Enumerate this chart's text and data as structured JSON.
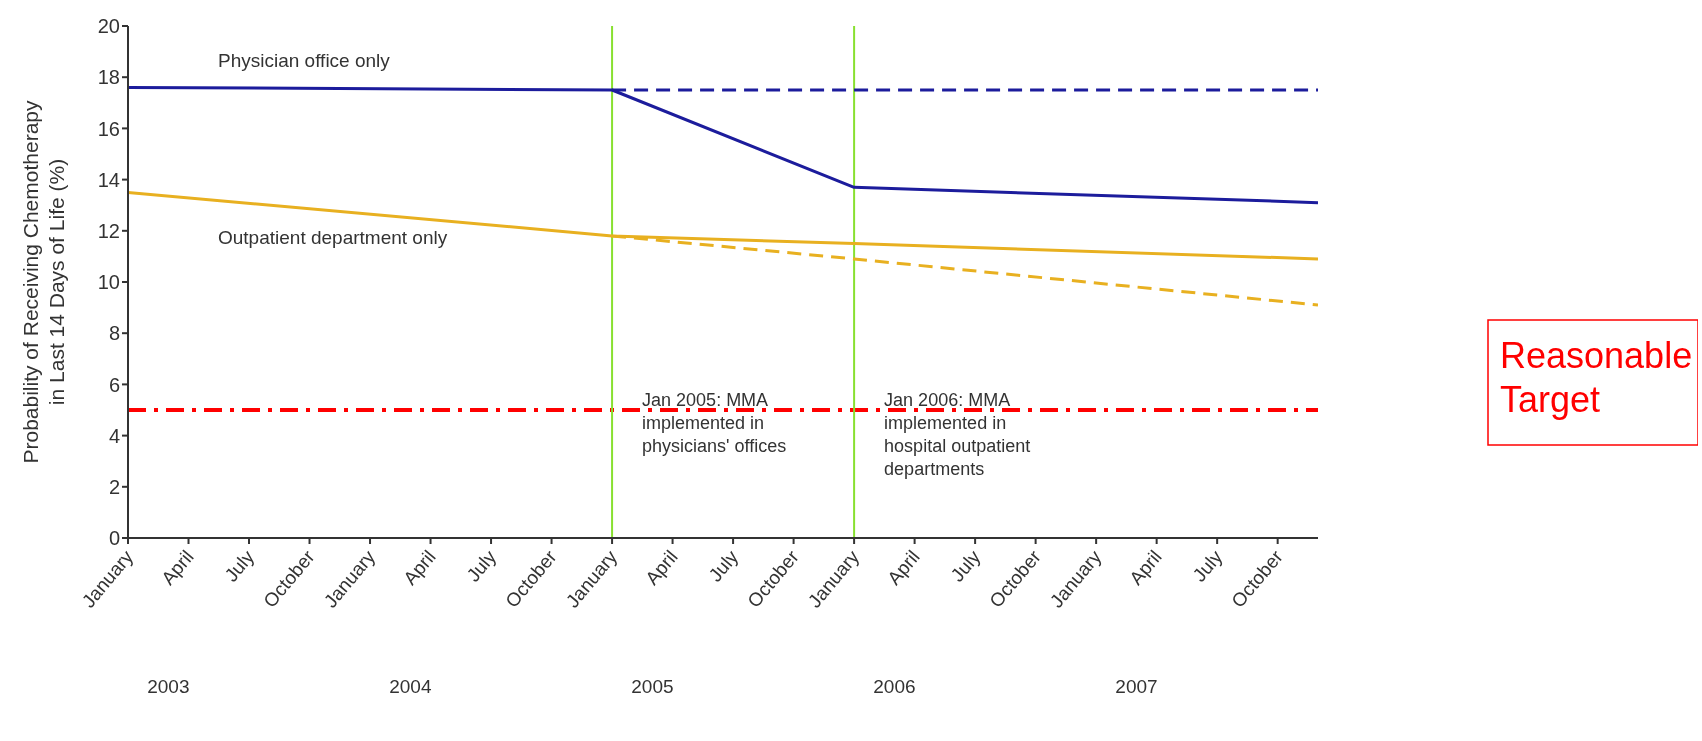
{
  "chart_data": {
    "type": "line",
    "ylabel": "Probability of Receiving Chemotherapy in Last 14 Days of Life (%)",
    "xlim": [
      "2003-01",
      "2007-12"
    ],
    "xticks": [
      {
        "value": "2003-01",
        "label": "January"
      },
      {
        "value": "2003-04",
        "label": "April"
      },
      {
        "value": "2003-07",
        "label": "July"
      },
      {
        "value": "2003-10",
        "label": "October"
      },
      {
        "value": "2004-01",
        "label": "January"
      },
      {
        "value": "2004-04",
        "label": "April"
      },
      {
        "value": "2004-07",
        "label": "July"
      },
      {
        "value": "2004-10",
        "label": "October"
      },
      {
        "value": "2005-01",
        "label": "January"
      },
      {
        "value": "2005-04",
        "label": "April"
      },
      {
        "value": "2005-07",
        "label": "July"
      },
      {
        "value": "2005-10",
        "label": "October"
      },
      {
        "value": "2006-01",
        "label": "January"
      },
      {
        "value": "2006-04",
        "label": "April"
      },
      {
        "value": "2006-07",
        "label": "July"
      },
      {
        "value": "2006-10",
        "label": "October"
      },
      {
        "value": "2007-01",
        "label": "January"
      },
      {
        "value": "2007-04",
        "label": "April"
      },
      {
        "value": "2007-07",
        "label": "July"
      },
      {
        "value": "2007-10",
        "label": "October"
      }
    ],
    "ylim": [
      0,
      20
    ],
    "yticks": [
      0,
      2,
      4,
      6,
      8,
      10,
      12,
      14,
      16,
      18,
      20
    ],
    "marker": "none",
    "series": [
      {
        "name": "Physician office only",
        "color": "#1c1c9c",
        "line_style": "solid",
        "x": [
          "2003-01",
          "2005-01",
          "2006-01",
          "2007-12"
        ],
        "values": [
          17.6,
          17.5,
          13.7,
          13.1
        ]
      },
      {
        "color": "#1c1c9c",
        "line_style": "dashed",
        "x": [
          "2005-01",
          "2007-12"
        ],
        "values": [
          17.5,
          17.5
        ]
      },
      {
        "name": "Outpatient department only",
        "color": "#e8b020",
        "line_style": "solid",
        "x": [
          "2003-01",
          "2005-01",
          "2006-01",
          "2007-12"
        ],
        "values": [
          13.5,
          11.8,
          11.5,
          10.9
        ]
      },
      {
        "color": "#e8b020",
        "line_style": "dashed",
        "x": [
          "2005-01",
          "2006-01",
          "2007-12"
        ],
        "values": [
          11.8,
          10.9,
          9.1
        ]
      }
    ],
    "ref_lines": [
      {
        "axis": "y",
        "value": 5,
        "label": "Reasonable Target",
        "color": "#ff0000",
        "line_style": "dashed"
      },
      {
        "axis": "x",
        "value": "2005-01",
        "label": "Jan 2005: MMA implemented in physicians' offices",
        "color": "#88e030"
      },
      {
        "axis": "x",
        "value": "2006-01",
        "label": "Jan 2006: MMA implemented in hospital outpatient departments",
        "color": "#88e030"
      }
    ],
    "annotations": [
      "2003",
      "2004",
      "2005",
      "2006",
      "2007"
    ]
  }
}
